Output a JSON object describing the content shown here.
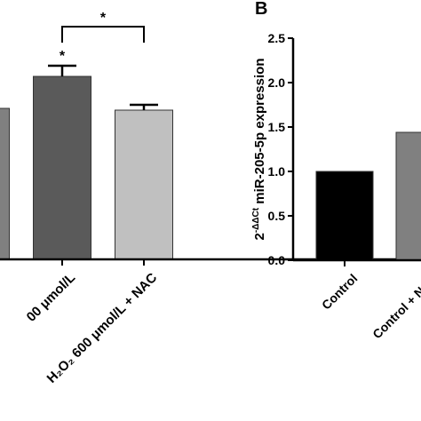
{
  "chart_data": [
    {
      "type": "bar",
      "categories": [
        null,
        "00 μmol/L",
        "H₂O₂ 600 μmol/L + NAC"
      ],
      "values": [
        170,
        206,
        168
      ],
      "errors": [
        null,
        12,
        6
      ],
      "colors": [
        "#808080",
        "#5a5a5a",
        "#c0c0c0"
      ],
      "ylim": [
        0,
        290
      ],
      "annotations": [
        "*",
        "*"
      ]
    },
    {
      "type": "bar",
      "panel_label": "B",
      "y_label": {
        "base": "2",
        "superscript": "-ΔΔCt",
        "text": " miR-205-5p expression"
      },
      "categories": [
        "Control",
        "Control + NAC"
      ],
      "values": [
        1.0,
        1.44
      ],
      "colors": [
        "#000000",
        "#808080"
      ],
      "ylim": [
        0,
        2.5
      ],
      "yticks": [
        {
          "value": 0,
          "label": "0.0"
        },
        {
          "value": 0.5,
          "label": "0.5"
        },
        {
          "value": 1,
          "label": "1.0"
        },
        {
          "value": 1.5,
          "label": "1.5"
        },
        {
          "value": 2,
          "label": "2.0"
        },
        {
          "value": 2.5,
          "label": "2.5"
        }
      ]
    }
  ]
}
